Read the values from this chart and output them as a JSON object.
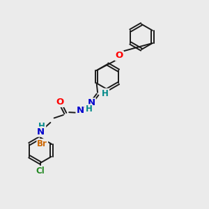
{
  "bg_color": "#ebebeb",
  "bond_color": "#1a1a1a",
  "atom_colors": {
    "O": "#ff0000",
    "N": "#0000cc",
    "Br": "#cc6600",
    "Cl": "#228822",
    "H": "#008888",
    "C": "#1a1a1a"
  },
  "bond_width": 1.4,
  "font_size": 8.5
}
